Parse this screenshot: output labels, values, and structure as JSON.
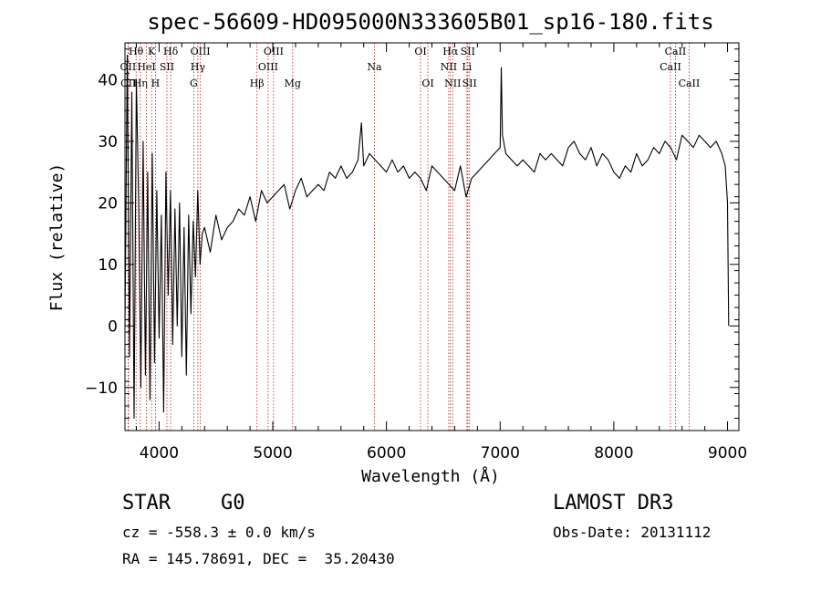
{
  "chart_data": {
    "type": "line",
    "title": "spec-56609-HD095000N333605B01_sp16-180.fits",
    "xlabel": "Wavelength (Å)",
    "ylabel": "Flux (relative)",
    "xlim": [
      3700,
      9100
    ],
    "ylim": [
      -17,
      46
    ],
    "xticks": [
      4000,
      5000,
      6000,
      7000,
      8000,
      9000
    ],
    "yticks": [
      -10,
      0,
      10,
      20,
      30,
      40
    ],
    "line_color": "#000000",
    "marker_color": "#b22222",
    "spectral_lines": [
      {
        "name": "CII",
        "wave": 3730,
        "row": 3
      },
      {
        "name": "OII",
        "wave": 3727,
        "row": 2
      },
      {
        "name": "Hθ",
        "wave": 3798,
        "row": 1
      },
      {
        "name": "Hη",
        "wave": 3835,
        "row": 3
      },
      {
        "name": "HeI",
        "wave": 3889,
        "row": 2
      },
      {
        "name": "K",
        "wave": 3934,
        "row": 1
      },
      {
        "name": "H",
        "wave": 3968,
        "row": 3
      },
      {
        "name": "SII",
        "wave": 4069,
        "row": 2
      },
      {
        "name": "Hδ",
        "wave": 4102,
        "row": 1
      },
      {
        "name": "G",
        "wave": 4305,
        "row": 3
      },
      {
        "name": "Hγ",
        "wave": 4341,
        "row": 2
      },
      {
        "name": "OIII",
        "wave": 4363,
        "row": 1
      },
      {
        "name": "Hβ",
        "wave": 4861,
        "row": 3
      },
      {
        "name": "OIII",
        "wave": 4959,
        "row": 2
      },
      {
        "name": "OIII",
        "wave": 5007,
        "row": 1
      },
      {
        "name": "Mg",
        "wave": 5175,
        "row": 3
      },
      {
        "name": "Na",
        "wave": 5894,
        "row": 2
      },
      {
        "name": "OI",
        "wave": 6300,
        "row": 1
      },
      {
        "name": "OI",
        "wave": 6364,
        "row": 3
      },
      {
        "name": "NII",
        "wave": 6548,
        "row": 2
      },
      {
        "name": "Hα",
        "wave": 6563,
        "row": 1
      },
      {
        "name": "NII",
        "wave": 6583,
        "row": 3
      },
      {
        "name": "Li",
        "wave": 6708,
        "row": 2
      },
      {
        "name": "SII",
        "wave": 6716,
        "row": 1
      },
      {
        "name": "SII",
        "wave": 6731,
        "row": 3
      },
      {
        "name": "CaII",
        "wave": 8498,
        "row": 2
      },
      {
        "name": "CaII",
        "wave": 8542,
        "row": 1
      },
      {
        "name": "CaII",
        "wave": 8662,
        "row": 3
      }
    ],
    "series": [
      {
        "name": "flux",
        "x": [
          3700,
          3720,
          3740,
          3760,
          3780,
          3800,
          3820,
          3840,
          3860,
          3880,
          3900,
          3920,
          3940,
          3960,
          3980,
          4000,
          4020,
          4040,
          4060,
          4080,
          4100,
          4120,
          4140,
          4160,
          4180,
          4200,
          4220,
          4240,
          4260,
          4280,
          4300,
          4320,
          4340,
          4360,
          4380,
          4400,
          4450,
          4500,
          4550,
          4600,
          4650,
          4700,
          4750,
          4800,
          4850,
          4900,
          4950,
          5000,
          5050,
          5100,
          5150,
          5200,
          5250,
          5300,
          5350,
          5400,
          5450,
          5500,
          5550,
          5600,
          5650,
          5700,
          5750,
          5780,
          5800,
          5850,
          5900,
          5950,
          6000,
          6050,
          6100,
          6150,
          6200,
          6250,
          6300,
          6350,
          6400,
          6450,
          6500,
          6550,
          6600,
          6650,
          6700,
          6750,
          6800,
          6850,
          6900,
          6950,
          7000,
          7010,
          7020,
          7050,
          7100,
          7150,
          7200,
          7250,
          7300,
          7350,
          7400,
          7450,
          7500,
          7550,
          7600,
          7650,
          7700,
          7750,
          7800,
          7850,
          7900,
          7950,
          8000,
          8050,
          8100,
          8150,
          8200,
          8250,
          8300,
          8350,
          8400,
          8450,
          8500,
          8550,
          8600,
          8650,
          8700,
          8750,
          8800,
          8850,
          8900,
          8950,
          8980,
          9000,
          9010
        ],
        "y": [
          0,
          44,
          -5,
          38,
          -15,
          40,
          20,
          -10,
          30,
          -8,
          25,
          -12,
          28,
          -6,
          22,
          -2,
          18,
          -14,
          25,
          5,
          22,
          -3,
          19,
          0,
          20,
          -5,
          16,
          -8,
          18,
          2,
          17,
          8,
          22,
          10,
          15,
          16,
          12,
          18,
          14,
          16,
          17,
          19,
          18,
          21,
          17,
          22,
          20,
          21,
          22,
          23,
          19,
          22,
          24,
          21,
          22,
          23,
          22,
          25,
          24,
          26,
          24,
          25,
          27,
          33,
          26,
          28,
          27,
          26,
          25,
          27,
          25,
          26,
          24,
          25,
          24,
          22,
          26,
          25,
          24,
          23,
          22,
          26,
          21,
          24,
          25,
          26,
          27,
          28,
          29,
          42,
          31,
          28,
          27,
          26,
          27,
          26,
          25,
          28,
          27,
          28,
          27,
          26,
          29,
          30,
          28,
          27,
          29,
          26,
          28,
          27,
          25,
          24,
          26,
          25,
          28,
          26,
          27,
          29,
          28,
          30,
          29,
          27,
          31,
          30,
          29,
          31,
          30,
          29,
          30,
          28,
          26,
          20,
          0
        ]
      }
    ]
  },
  "footer": {
    "object_type": "STAR",
    "subclass": "G0",
    "survey": "LAMOST DR3",
    "redshift_text": "cz = -558.3 ± 0.0 km/s",
    "obs_date": "Obs-Date: 20131112",
    "coords": "RA = 145.78691, DEC =  35.20430"
  }
}
